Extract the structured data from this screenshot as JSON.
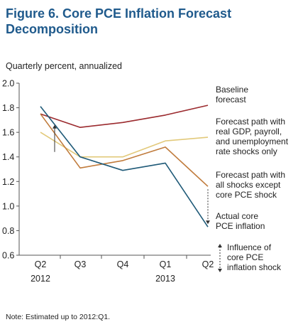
{
  "figure": {
    "title_line1": "Figure 6. Core PCE Inflation Forecast",
    "title_line2": "Decomposition",
    "units": "Quarterly percent, annualized",
    "note": "Note: Estimated up to 2012:Q1."
  },
  "chart_data": {
    "type": "line",
    "categories": [
      "Q2",
      "Q3",
      "Q4",
      "Q1",
      "Q2"
    ],
    "year_labels": [
      "2012",
      "",
      "",
      "2013",
      ""
    ],
    "ylim": [
      0.6,
      2.0
    ],
    "yticks": [
      "2.0",
      "1.8",
      "1.6",
      "1.4",
      "1.2",
      "1.0",
      "0.8",
      "0.6"
    ],
    "series": [
      {
        "label_lines": [
          "Baseline",
          "forecast"
        ],
        "color": "#9b2a2e",
        "values": [
          1.75,
          1.64,
          1.68,
          1.74,
          1.82
        ]
      },
      {
        "label_lines": [
          "Forecast path with",
          "real GDP, payroll,",
          "and unemployment",
          "rate shocks only"
        ],
        "color": "#e2c97a",
        "values": [
          1.6,
          1.4,
          1.4,
          1.53,
          1.56
        ]
      },
      {
        "label_lines": [
          "Forecast path with",
          "all shocks except",
          "core PCE shock"
        ],
        "color": "#c07b3c",
        "values": [
          1.75,
          1.31,
          1.37,
          1.48,
          1.16
        ]
      },
      {
        "label_lines": [
          "Actual core",
          "PCE inflation"
        ],
        "color": "#1f5a78",
        "values": [
          1.81,
          1.4,
          1.29,
          1.35,
          0.83
        ]
      }
    ],
    "annotation": [
      "Influence of",
      "core PCE",
      "inflation shock"
    ]
  }
}
